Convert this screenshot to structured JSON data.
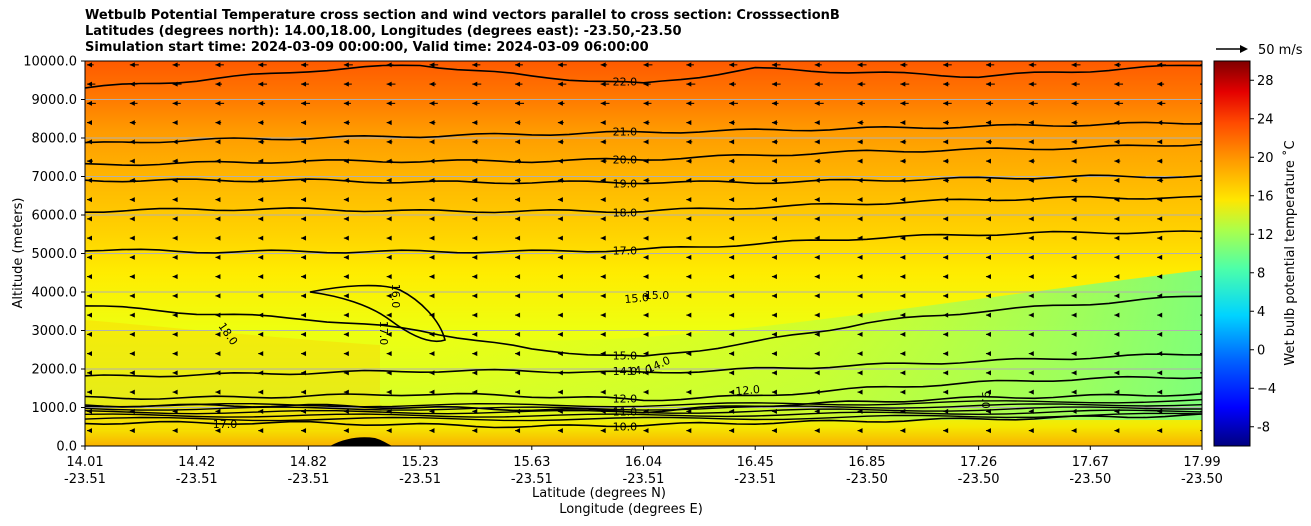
{
  "chart_data": {
    "type": "heatmap",
    "title_lines": [
      "Wetbulb Potential Temperature cross section and wind vectors parallel to cross section: CrosssectionB",
      "Latitudes (degrees north): 14.00,18.00, Longitudes (degrees east): -23.50,-23.50",
      "Simulation start time: 2024-03-09 00:00:00, Valid time: 2024-03-09 06:00:00"
    ],
    "xlabel_lat": "Latitude (degrees N)",
    "xlabel_lon": "Longitude (degrees E)",
    "ylabel": "Altitude (meters)",
    "colorbar_label": "Wet bulb potential temperature ˚C",
    "colorbar_range": [
      -10,
      30
    ],
    "colorbar_ticks": [
      "-8",
      "−4",
      "0",
      "4",
      "8",
      "12",
      "16",
      "20",
      "24",
      "28"
    ],
    "quiver_key_label": "50 m/s",
    "x_ticks": [
      {
        "lat": "14.01",
        "lon": "-23.51"
      },
      {
        "lat": "14.42",
        "lon": "-23.51"
      },
      {
        "lat": "14.82",
        "lon": "-23.51"
      },
      {
        "lat": "15.23",
        "lon": "-23.51"
      },
      {
        "lat": "15.63",
        "lon": "-23.51"
      },
      {
        "lat": "16.04",
        "lon": "-23.51"
      },
      {
        "lat": "16.45",
        "lon": "-23.51"
      },
      {
        "lat": "16.85",
        "lon": "-23.50"
      },
      {
        "lat": "17.26",
        "lon": "-23.50"
      },
      {
        "lat": "17.67",
        "lon": "-23.50"
      },
      {
        "lat": "17.99",
        "lon": "-23.50"
      }
    ],
    "y_ticks": [
      "0.0",
      "1000.0",
      "2000.0",
      "3000.0",
      "4000.0",
      "5000.0",
      "6000.0",
      "7000.0",
      "8000.0",
      "9000.0",
      "10000.0"
    ],
    "ylim": [
      0,
      10000
    ],
    "grid": "horizontal",
    "contour_levels": [
      {
        "label": "22.0",
        "y": [
          9300,
          9500,
          9750,
          9900,
          9600,
          9400,
          9800,
          9700,
          9600,
          9750,
          9900
        ]
      },
      {
        "label": "21.0",
        "y": [
          7850,
          7950,
          8000,
          8050,
          8100,
          8150,
          8200,
          8250,
          8300,
          8350,
          8400
        ]
      },
      {
        "label": "20.0",
        "y": [
          7300,
          7350,
          7400,
          7400,
          7400,
          7450,
          7550,
          7650,
          7700,
          7750,
          7850
        ]
      },
      {
        "label": "19.0",
        "y": [
          6900,
          6900,
          6900,
          6850,
          6850,
          6850,
          6850,
          6900,
          6950,
          7000,
          7000
        ]
      },
      {
        "label": "18.0",
        "y": [
          6100,
          6150,
          6150,
          6100,
          6100,
          6100,
          6200,
          6300,
          6400,
          6450,
          6450
        ]
      },
      {
        "label": "17.0",
        "y": [
          5100,
          5050,
          5050,
          5050,
          5050,
          5100,
          5250,
          5400,
          5500,
          5550,
          5550
        ]
      },
      {
        "label": "15.0",
        "y": [
          3650,
          3450,
          3300,
          3000,
          2500,
          2300,
          2700,
          3200,
          3500,
          3700,
          3900
        ]
      },
      {
        "label": "14.0",
        "y": [
          1800,
          1850,
          1900,
          1950,
          1950,
          1900,
          2000,
          2100,
          2200,
          2300,
          2400
        ]
      },
      {
        "label": "12.0",
        "y": [
          1250,
          1250,
          1300,
          1350,
          1300,
          1200,
          1300,
          1500,
          1650,
          1750,
          1800
        ]
      },
      {
        "label": "11.0",
        "y": [
          1050,
          1050,
          1050,
          1000,
          950,
          900,
          1050,
          1150,
          1250,
          1300,
          1350
        ]
      },
      {
        "label": "10.0",
        "y": [
          600,
          600,
          600,
          550,
          500,
          550,
          600,
          650,
          700,
          750,
          800
        ]
      }
    ],
    "inline_labels": [
      "18.0",
      "16.0",
      "17.0",
      "15.0",
      "15.0",
      "14.0",
      "14.0",
      "12.0",
      "11.0",
      "11.0",
      "11.0",
      "12.0",
      "13.0",
      "10.0",
      "10.0",
      "9.0",
      "17.0"
    ],
    "wind": "vectors parallel to cross section; mostly pointing toward lower latitude in upper levels"
  }
}
